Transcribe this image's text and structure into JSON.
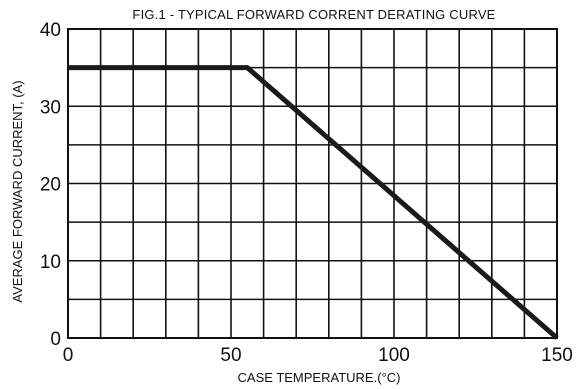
{
  "chart_data": {
    "type": "line",
    "title": "FIG.1 - TYPICAL FORWARD CORRENT DERATING CURVE",
    "xlabel": "CASE TEMPERATURE.(°C)",
    "ylabel": "AVERAGE FORWARD CURRENT, (A)",
    "xlim": [
      0,
      150
    ],
    "ylim": [
      0,
      40
    ],
    "x_ticks": [
      0,
      50,
      100,
      150
    ],
    "y_ticks": [
      0,
      10,
      20,
      30,
      40
    ],
    "x_grid_step": 10,
    "y_grid_step": 5,
    "grid": true,
    "series": [
      {
        "x": [
          0,
          55,
          150
        ],
        "y": [
          35,
          35,
          0
        ],
        "color": "#1a1a1a"
      }
    ]
  }
}
